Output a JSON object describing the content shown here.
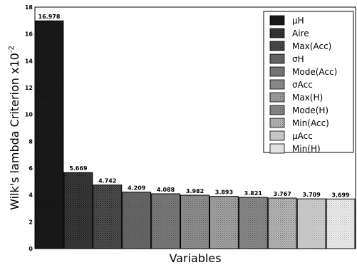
{
  "chart_data": {
    "type": "bar",
    "categories": [
      "μH",
      "Aire",
      "Max(Acc)",
      "σH",
      "Mode(Acc)",
      "σAcc",
      "Max(H)",
      "Mode(H)",
      "Min(Acc)",
      "μAcc",
      "Min(H)"
    ],
    "values": [
      16.978,
      5.669,
      4.742,
      4.209,
      4.088,
      3.982,
      3.893,
      3.821,
      3.767,
      3.709,
      3.699
    ],
    "value_labels": [
      "16.978",
      "5.669",
      "4.742",
      "4.209",
      "4.088",
      "3.982",
      "3.893",
      "3.821",
      "3.767",
      "3.709",
      "3.699"
    ],
    "xlabel": "Variables",
    "ylabel": "Wilk's lambda Criterion x10",
    "ylabel_exponent": "-2",
    "ylim": [
      0,
      18
    ],
    "yticks": [
      "0",
      "2",
      "4",
      "6",
      "8",
      "10",
      "12",
      "14",
      "16",
      "18"
    ],
    "legend_position": "top-right",
    "grid": false,
    "bar_fills": [
      "#1b1b1b",
      "#3a3a3a",
      "#4f4f4f",
      "#666666",
      "#7a7a7a",
      "#8f8f8f",
      "#a4a4a4",
      "#8a8a8a",
      "#b8b8b8",
      "#cccccc",
      "#ededed"
    ]
  }
}
